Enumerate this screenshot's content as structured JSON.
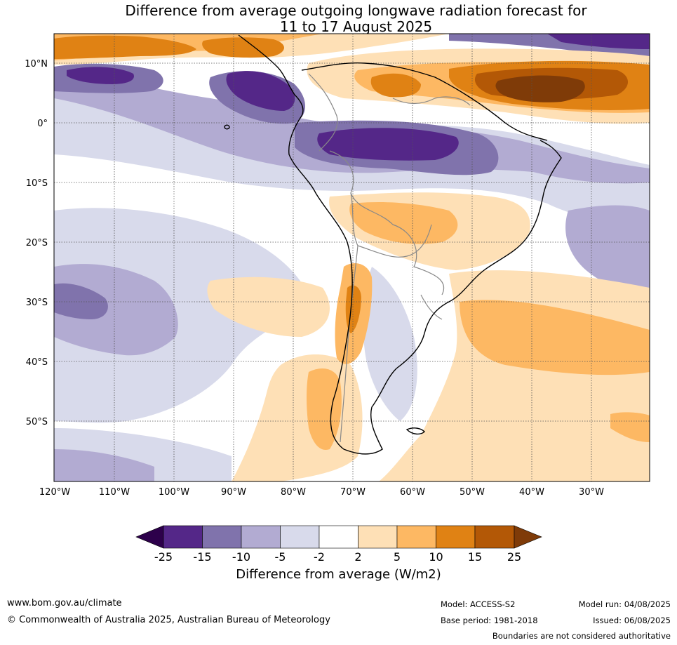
{
  "title": {
    "line1": "Difference from average outgoing longwave radiation forecast for",
    "line2": "11 to 17 August 2025"
  },
  "map": {
    "lat_labels": [
      "10°N",
      "0°",
      "10°S",
      "20°S",
      "30°S",
      "40°S",
      "50°S"
    ],
    "lon_labels": [
      "120°W",
      "110°W",
      "100°W",
      "90°W",
      "80°W",
      "70°W",
      "60°W",
      "50°W",
      "40°W",
      "30°W"
    ],
    "colors": {
      "n25_plus": "#2d004b",
      "n15_25": "#542788",
      "n10_15": "#8073ac",
      "n5_10": "#b2abd2",
      "n2_5": "#d8daeb",
      "neutral": "#ffffff",
      "p2_5": "#fee0b6",
      "p5_10": "#fdb863",
      "p10_15": "#e08214",
      "p15_25": "#b35806",
      "p25_plus": "#7f3b08",
      "coast": "#000000",
      "borders": "#888888"
    }
  },
  "colorbar": {
    "ticks": [
      "-25",
      "-15",
      "-10",
      "-5",
      "-2",
      "2",
      "5",
      "10",
      "15",
      "25"
    ],
    "label": "Difference from average (W/m2)"
  },
  "footer": {
    "website": "www.bom.gov.au/climate",
    "copyright": "© Commonwealth of Australia 2025, Australian Bureau of Meteorology",
    "model": "Model: ACCESS-S2",
    "base_period": "Base period: 1981-2018",
    "model_run": "Model run: 04/08/2025",
    "issued": "Issued: 06/08/2025",
    "disclaimer": "Boundaries are not considered authoritative"
  }
}
